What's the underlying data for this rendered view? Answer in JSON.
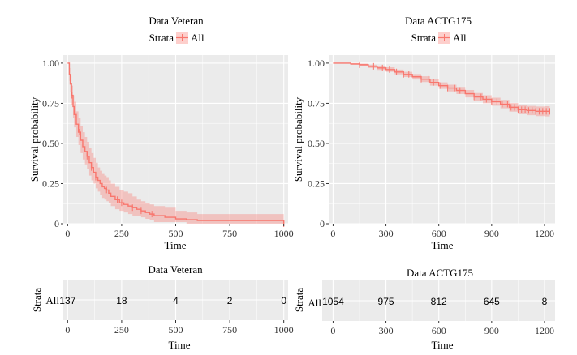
{
  "panels": [
    {
      "title": "Data Veteran",
      "legend_title": "Strata",
      "legend_label": "All",
      "xlabel": "Time",
      "ylabel": "Survival probability"
    },
    {
      "title": "Data ACTG175",
      "legend_title": "Strata",
      "legend_label": "All",
      "xlabel": "Time",
      "ylabel": "Survival probability"
    }
  ],
  "risk_tables": [
    {
      "title": "Data Veteran",
      "ylabel": "Strata",
      "row_label": "All",
      "xlabel": "Time",
      "times": [
        0,
        250,
        500,
        750,
        1000
      ],
      "counts": [
        "137",
        "18",
        "4",
        "2",
        "0"
      ]
    },
    {
      "title": "Data ACTG175",
      "ylabel": "Strata",
      "row_label": "All",
      "xlabel": "Time",
      "times": [
        0,
        300,
        600,
        900,
        1200
      ],
      "counts": [
        "1054",
        "975",
        "812",
        "645",
        "8"
      ]
    }
  ],
  "colors": {
    "curve": "#F8766D",
    "band": "#F8766D",
    "panel_bg": "#EBEBEB",
    "grid": "#FFFFFF"
  },
  "chart_data": [
    {
      "type": "line",
      "title": "Data Veteran",
      "xlabel": "Time",
      "ylabel": "Survival probability",
      "xlim": [
        -20,
        1020
      ],
      "ylim": [
        0,
        1.05
      ],
      "xticks": [
        0,
        250,
        500,
        750,
        1000
      ],
      "yticks": [
        0,
        0.25,
        0.5,
        0.75,
        1.0
      ],
      "ytick_labels": [
        "0",
        "0.25",
        "0.50",
        "0.75",
        "1.00"
      ],
      "grid": true,
      "legend": "top",
      "series": [
        {
          "name": "All",
          "step": true,
          "x": [
            0,
            8,
            12,
            18,
            25,
            30,
            40,
            50,
            60,
            70,
            80,
            90,
            100,
            110,
            120,
            130,
            140,
            150,
            160,
            170,
            180,
            190,
            200,
            220,
            240,
            260,
            280,
            300,
            320,
            340,
            360,
            380,
            400,
            450,
            500,
            550,
            600,
            1000
          ],
          "y": [
            1.0,
            0.93,
            0.87,
            0.8,
            0.73,
            0.68,
            0.62,
            0.57,
            0.52,
            0.48,
            0.45,
            0.42,
            0.38,
            0.35,
            0.32,
            0.29,
            0.27,
            0.25,
            0.23,
            0.22,
            0.21,
            0.19,
            0.17,
            0.15,
            0.13,
            0.12,
            0.11,
            0.1,
            0.09,
            0.08,
            0.07,
            0.06,
            0.05,
            0.04,
            0.03,
            0.025,
            0.02,
            0.0
          ],
          "lower": [
            1.0,
            0.89,
            0.82,
            0.74,
            0.66,
            0.6,
            0.54,
            0.49,
            0.44,
            0.4,
            0.37,
            0.34,
            0.3,
            0.27,
            0.25,
            0.22,
            0.2,
            0.18,
            0.16,
            0.15,
            0.14,
            0.13,
            0.11,
            0.09,
            0.08,
            0.07,
            0.06,
            0.05,
            0.05,
            0.04,
            0.03,
            0.02,
            0.01,
            0.01,
            0.01,
            0.0,
            0.0,
            0.0
          ],
          "upper": [
            1.0,
            0.97,
            0.92,
            0.86,
            0.8,
            0.76,
            0.7,
            0.66,
            0.61,
            0.57,
            0.54,
            0.51,
            0.47,
            0.44,
            0.41,
            0.38,
            0.35,
            0.33,
            0.31,
            0.3,
            0.29,
            0.27,
            0.25,
            0.23,
            0.21,
            0.2,
            0.19,
            0.17,
            0.15,
            0.14,
            0.13,
            0.12,
            0.11,
            0.1,
            0.08,
            0.07,
            0.06,
            0.05
          ],
          "censor_x": [
            20,
            35,
            55,
            90,
            110,
            130,
            180,
            230,
            250,
            300,
            340,
            390,
            1000
          ]
        }
      ]
    },
    {
      "type": "line",
      "title": "Data ACTG175",
      "xlabel": "Time",
      "ylabel": "Survival probability",
      "xlim": [
        -25,
        1260
      ],
      "ylim": [
        0,
        1.05
      ],
      "xticks": [
        0,
        300,
        600,
        900,
        1200
      ],
      "yticks": [
        0,
        0.25,
        0.5,
        0.75,
        1.0
      ],
      "ytick_labels": [
        "0",
        "0.25",
        "0.50",
        "0.75",
        "1.00"
      ],
      "grid": true,
      "legend": "top",
      "series": [
        {
          "name": "All",
          "step": true,
          "x": [
            0,
            50,
            100,
            150,
            200,
            250,
            300,
            350,
            400,
            450,
            500,
            550,
            600,
            650,
            700,
            750,
            800,
            850,
            900,
            950,
            1000,
            1050,
            1100,
            1150,
            1200,
            1230
          ],
          "y": [
            1.0,
            1.0,
            0.995,
            0.99,
            0.98,
            0.97,
            0.96,
            0.945,
            0.93,
            0.915,
            0.9,
            0.88,
            0.86,
            0.845,
            0.83,
            0.81,
            0.79,
            0.775,
            0.76,
            0.745,
            0.725,
            0.71,
            0.705,
            0.7,
            0.7,
            0.7
          ],
          "lower": [
            1.0,
            0.998,
            0.99,
            0.982,
            0.97,
            0.958,
            0.946,
            0.93,
            0.914,
            0.898,
            0.882,
            0.86,
            0.84,
            0.824,
            0.808,
            0.787,
            0.766,
            0.75,
            0.735,
            0.719,
            0.698,
            0.682,
            0.676,
            0.67,
            0.668,
            0.668
          ],
          "upper": [
            1.0,
            1.0,
            1.0,
            0.997,
            0.99,
            0.982,
            0.974,
            0.96,
            0.946,
            0.932,
            0.918,
            0.9,
            0.88,
            0.866,
            0.852,
            0.833,
            0.814,
            0.8,
            0.785,
            0.771,
            0.752,
            0.738,
            0.734,
            0.73,
            0.732,
            0.732
          ],
          "censor_x": [
            150,
            230,
            280,
            320,
            360,
            400,
            430,
            470,
            500,
            540,
            570,
            610,
            650,
            690,
            720,
            760,
            800,
            840,
            870,
            900,
            930,
            960,
            990,
            1010,
            1030,
            1050,
            1070,
            1090,
            1110,
            1130,
            1150,
            1170,
            1190,
            1210,
            1230
          ]
        }
      ]
    }
  ]
}
